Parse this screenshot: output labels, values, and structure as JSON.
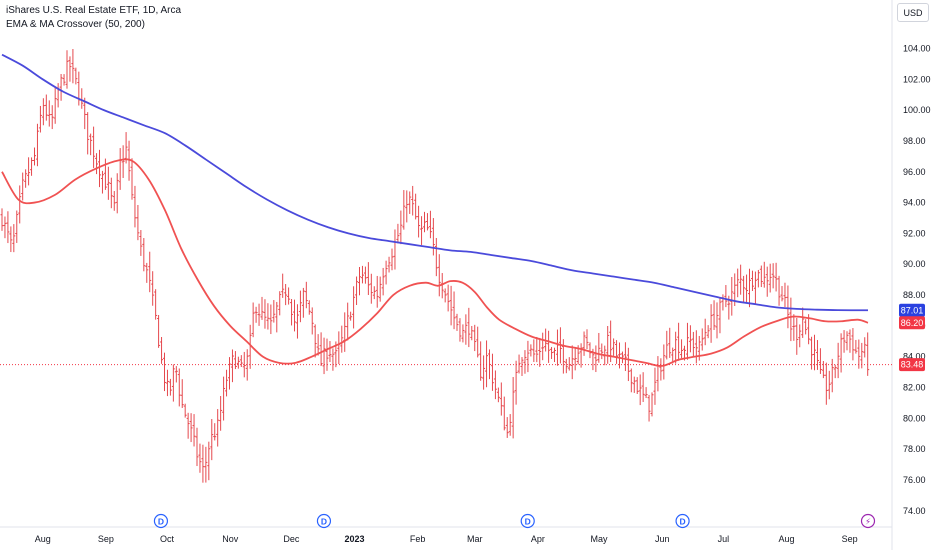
{
  "legend": {
    "symbol_line": "iShares U.S. Real Estate ETF, 1D, Arca",
    "indicator_line": "EMA & MA Crossover (50, 200)"
  },
  "currency_button": "USD",
  "colors": {
    "bar": "#e5484d",
    "ema": "#f05252",
    "ma": "#4a4adb",
    "price_tag": "#f23645",
    "ma_tag": "#2a41e0",
    "event_d": "#2962ff",
    "event_bolt": "#9c27b0"
  },
  "chart_data": {
    "type": "line",
    "title": "iShares U.S. Real Estate ETF, 1D, Arca",
    "y_axis": {
      "min": 73.4,
      "max": 105.2,
      "ticks": [
        104,
        102,
        100,
        98,
        96,
        94,
        92,
        90,
        88,
        86,
        84,
        82,
        80,
        78,
        76,
        74
      ],
      "tick_labels": [
        "104.00",
        "102.00",
        "100.00",
        "98.00",
        "96.00",
        "94.00",
        "92.00",
        "90.00",
        "88.00",
        "86.00",
        "84.00",
        "82.00",
        "80.00",
        "78.00",
        "76.00",
        "74.00"
      ],
      "position": "right"
    },
    "x_axis": {
      "labels": [
        {
          "text": "Aug",
          "day": 20,
          "bold": false
        },
        {
          "text": "Sep",
          "day": 51,
          "bold": false
        },
        {
          "text": "Oct",
          "day": 81,
          "bold": false
        },
        {
          "text": "Nov",
          "day": 112,
          "bold": false
        },
        {
          "text": "Dec",
          "day": 142,
          "bold": false
        },
        {
          "text": "2023",
          "day": 173,
          "bold": true
        },
        {
          "text": "Feb",
          "day": 204,
          "bold": false
        },
        {
          "text": "Mar",
          "day": 232,
          "bold": false
        },
        {
          "text": "Apr",
          "day": 263,
          "bold": false
        },
        {
          "text": "May",
          "day": 293,
          "bold": false
        },
        {
          "text": "Jun",
          "day": 324,
          "bold": false
        },
        {
          "text": "Jul",
          "day": 354,
          "bold": false
        },
        {
          "text": "Aug",
          "day": 385,
          "bold": false
        },
        {
          "text": "Sep",
          "day": 416,
          "bold": false
        }
      ],
      "first_day": 0,
      "last_day": 425
    },
    "price_anchors": [
      {
        "day": 0,
        "close": 93.0
      },
      {
        "day": 5,
        "close": 91.0
      },
      {
        "day": 10,
        "close": 95.0
      },
      {
        "day": 16,
        "close": 97.0
      },
      {
        "day": 20,
        "close": 100.5
      },
      {
        "day": 24,
        "close": 99.0
      },
      {
        "day": 28,
        "close": 101.5
      },
      {
        "day": 33,
        "close": 103.0
      },
      {
        "day": 37,
        "close": 101.5
      },
      {
        "day": 42,
        "close": 98.5
      },
      {
        "day": 47,
        "close": 96.5
      },
      {
        "day": 52,
        "close": 95.0
      },
      {
        "day": 55,
        "close": 93.5
      },
      {
        "day": 58,
        "close": 96.5
      },
      {
        "day": 61,
        "close": 97.5
      },
      {
        "day": 64,
        "close": 94.0
      },
      {
        "day": 68,
        "close": 91.0
      },
      {
        "day": 72,
        "close": 89.0
      },
      {
        "day": 76,
        "close": 86.0
      },
      {
        "day": 79,
        "close": 83.0
      },
      {
        "day": 82,
        "close": 81.5
      },
      {
        "day": 85,
        "close": 83.5
      },
      {
        "day": 88,
        "close": 81.0
      },
      {
        "day": 92,
        "close": 79.5
      },
      {
        "day": 96,
        "close": 77.5
      },
      {
        "day": 99,
        "close": 76.5
      },
      {
        "day": 102,
        "close": 78.5
      },
      {
        "day": 106,
        "close": 79.5
      },
      {
        "day": 110,
        "close": 82.5
      },
      {
        "day": 114,
        "close": 84.0
      },
      {
        "day": 118,
        "close": 83.0
      },
      {
        "day": 121,
        "close": 84.0
      },
      {
        "day": 124,
        "close": 87.5
      },
      {
        "day": 128,
        "close": 86.5
      },
      {
        "day": 132,
        "close": 86.0
      },
      {
        "day": 136,
        "close": 87.5
      },
      {
        "day": 140,
        "close": 88.5
      },
      {
        "day": 144,
        "close": 86.0
      },
      {
        "day": 148,
        "close": 88.0
      },
      {
        "day": 152,
        "close": 86.5
      },
      {
        "day": 156,
        "close": 83.5
      },
      {
        "day": 160,
        "close": 84.5
      },
      {
        "day": 164,
        "close": 84.0
      },
      {
        "day": 168,
        "close": 85.5
      },
      {
        "day": 172,
        "close": 87.5
      },
      {
        "day": 176,
        "close": 89.5
      },
      {
        "day": 180,
        "close": 88.5
      },
      {
        "day": 184,
        "close": 88.0
      },
      {
        "day": 188,
        "close": 90.0
      },
      {
        "day": 192,
        "close": 91.0
      },
      {
        "day": 196,
        "close": 92.5
      },
      {
        "day": 199,
        "close": 94.5
      },
      {
        "day": 202,
        "close": 93.5
      },
      {
        "day": 205,
        "close": 92.0
      },
      {
        "day": 208,
        "close": 92.5
      },
      {
        "day": 211,
        "close": 91.5
      },
      {
        "day": 214,
        "close": 89.5
      },
      {
        "day": 218,
        "close": 88.0
      },
      {
        "day": 222,
        "close": 86.5
      },
      {
        "day": 226,
        "close": 85.5
      },
      {
        "day": 229,
        "close": 86.0
      },
      {
        "day": 232,
        "close": 84.5
      },
      {
        "day": 235,
        "close": 83.0
      },
      {
        "day": 238,
        "close": 84.0
      },
      {
        "day": 241,
        "close": 82.5
      },
      {
        "day": 245,
        "close": 80.5
      },
      {
        "day": 248,
        "close": 79.0
      },
      {
        "day": 251,
        "close": 81.5
      },
      {
        "day": 254,
        "close": 84.0
      },
      {
        "day": 258,
        "close": 84.5
      },
      {
        "day": 262,
        "close": 84.0
      },
      {
        "day": 266,
        "close": 85.0
      },
      {
        "day": 270,
        "close": 84.0
      },
      {
        "day": 274,
        "close": 84.5
      },
      {
        "day": 278,
        "close": 83.5
      },
      {
        "day": 282,
        "close": 84.5
      },
      {
        "day": 286,
        "close": 85.0
      },
      {
        "day": 290,
        "close": 84.0
      },
      {
        "day": 294,
        "close": 84.5
      },
      {
        "day": 298,
        "close": 85.0
      },
      {
        "day": 302,
        "close": 84.0
      },
      {
        "day": 306,
        "close": 83.5
      },
      {
        "day": 310,
        "close": 82.5
      },
      {
        "day": 314,
        "close": 81.5
      },
      {
        "day": 318,
        "close": 80.8
      },
      {
        "day": 322,
        "close": 83.0
      },
      {
        "day": 326,
        "close": 84.5
      },
      {
        "day": 330,
        "close": 85.0
      },
      {
        "day": 334,
        "close": 84.5
      },
      {
        "day": 338,
        "close": 85.0
      },
      {
        "day": 342,
        "close": 84.5
      },
      {
        "day": 346,
        "close": 86.0
      },
      {
        "day": 350,
        "close": 86.5
      },
      {
        "day": 354,
        "close": 87.5
      },
      {
        "day": 358,
        "close": 88.0
      },
      {
        "day": 362,
        "close": 89.0
      },
      {
        "day": 366,
        "close": 88.5
      },
      {
        "day": 370,
        "close": 89.5
      },
      {
        "day": 374,
        "close": 89.0
      },
      {
        "day": 378,
        "close": 89.5
      },
      {
        "day": 381,
        "close": 88.5
      },
      {
        "day": 384,
        "close": 87.5
      },
      {
        "day": 387,
        "close": 86.0
      },
      {
        "day": 390,
        "close": 85.5
      },
      {
        "day": 393,
        "close": 86.5
      },
      {
        "day": 396,
        "close": 85.0
      },
      {
        "day": 399,
        "close": 84.0
      },
      {
        "day": 402,
        "close": 82.5
      },
      {
        "day": 405,
        "close": 82.0
      },
      {
        "day": 408,
        "close": 83.0
      },
      {
        "day": 411,
        "close": 84.5
      },
      {
        "day": 414,
        "close": 85.5
      },
      {
        "day": 417,
        "close": 85.0
      },
      {
        "day": 420,
        "close": 84.0
      },
      {
        "day": 423,
        "close": 84.5
      },
      {
        "day": 425,
        "close": 83.48
      }
    ],
    "series": [
      {
        "name": "EMA (50)",
        "kind": "line",
        "color": "#f05252",
        "points": [
          [
            0,
            96.0
          ],
          [
            8,
            94.2
          ],
          [
            16,
            94.0
          ],
          [
            26,
            94.5
          ],
          [
            36,
            95.5
          ],
          [
            46,
            96.2
          ],
          [
            56,
            96.7
          ],
          [
            64,
            96.7
          ],
          [
            72,
            95.5
          ],
          [
            80,
            93.5
          ],
          [
            88,
            91.0
          ],
          [
            96,
            89.0
          ],
          [
            104,
            87.3
          ],
          [
            112,
            86.0
          ],
          [
            120,
            85.0
          ],
          [
            128,
            84.0
          ],
          [
            136,
            83.6
          ],
          [
            144,
            83.6
          ],
          [
            152,
            84.0
          ],
          [
            160,
            84.5
          ],
          [
            168,
            85.0
          ],
          [
            176,
            85.8
          ],
          [
            184,
            86.8
          ],
          [
            192,
            88.0
          ],
          [
            200,
            88.6
          ],
          [
            208,
            88.8
          ],
          [
            214,
            88.6
          ],
          [
            220,
            88.9
          ],
          [
            226,
            88.8
          ],
          [
            232,
            88.2
          ],
          [
            238,
            87.2
          ],
          [
            244,
            86.4
          ],
          [
            252,
            85.8
          ],
          [
            260,
            85.3
          ],
          [
            268,
            85.0
          ],
          [
            276,
            84.7
          ],
          [
            284,
            84.5
          ],
          [
            292,
            84.2
          ],
          [
            300,
            84.0
          ],
          [
            308,
            83.8
          ],
          [
            316,
            83.6
          ],
          [
            324,
            83.4
          ],
          [
            332,
            83.8
          ],
          [
            340,
            84.0
          ],
          [
            348,
            84.2
          ],
          [
            356,
            84.6
          ],
          [
            364,
            85.3
          ],
          [
            372,
            85.9
          ],
          [
            380,
            86.3
          ],
          [
            388,
            86.6
          ],
          [
            396,
            86.5
          ],
          [
            404,
            86.3
          ],
          [
            412,
            86.3
          ],
          [
            420,
            86.4
          ],
          [
            425,
            86.2
          ]
        ]
      },
      {
        "name": "MA (200)",
        "kind": "line",
        "color": "#4a4adb",
        "points": [
          [
            0,
            103.6
          ],
          [
            10,
            102.9
          ],
          [
            20,
            102.0
          ],
          [
            30,
            101.2
          ],
          [
            40,
            100.6
          ],
          [
            50,
            100.0
          ],
          [
            60,
            99.5
          ],
          [
            70,
            99.0
          ],
          [
            80,
            98.5
          ],
          [
            90,
            97.7
          ],
          [
            100,
            96.8
          ],
          [
            110,
            95.9
          ],
          [
            120,
            95.0
          ],
          [
            130,
            94.2
          ],
          [
            140,
            93.5
          ],
          [
            150,
            92.9
          ],
          [
            160,
            92.4
          ],
          [
            170,
            92.0
          ],
          [
            180,
            91.7
          ],
          [
            190,
            91.5
          ],
          [
            200,
            91.3
          ],
          [
            210,
            91.1
          ],
          [
            220,
            90.9
          ],
          [
            230,
            90.8
          ],
          [
            240,
            90.6
          ],
          [
            250,
            90.4
          ],
          [
            260,
            90.2
          ],
          [
            270,
            89.9
          ],
          [
            280,
            89.6
          ],
          [
            290,
            89.4
          ],
          [
            300,
            89.2
          ],
          [
            310,
            89.0
          ],
          [
            320,
            88.8
          ],
          [
            330,
            88.5
          ],
          [
            340,
            88.2
          ],
          [
            350,
            87.9
          ],
          [
            360,
            87.6
          ],
          [
            370,
            87.4
          ],
          [
            380,
            87.2
          ],
          [
            390,
            87.1
          ],
          [
            400,
            87.05
          ],
          [
            410,
            87.02
          ],
          [
            425,
            87.01
          ]
        ]
      }
    ],
    "last_values": [
      {
        "name": "MA (200)",
        "value": 87.01,
        "label": "87.01",
        "color": "#2a41e0"
      },
      {
        "name": "EMA (50)",
        "value": 86.2,
        "label": "86.20",
        "color": "#f23645"
      },
      {
        "name": "Last price",
        "value": 83.48,
        "label": "83.48",
        "color": "#f23645"
      }
    ],
    "event_markers": [
      {
        "day": 78,
        "glyph": "D",
        "kind": "dividend"
      },
      {
        "day": 158,
        "glyph": "D",
        "kind": "dividend"
      },
      {
        "day": 258,
        "glyph": "D",
        "kind": "dividend"
      },
      {
        "day": 334,
        "glyph": "D",
        "kind": "dividend"
      },
      {
        "day": 433,
        "glyph": "⚡",
        "kind": "earnings"
      }
    ],
    "grid": false
  }
}
